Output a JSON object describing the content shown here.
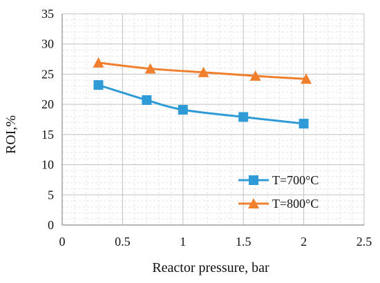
{
  "chart_data": {
    "type": "line",
    "title": "",
    "xlabel": "Reactor pressure, bar",
    "ylabel": "ROI,%",
    "xlim": [
      0,
      2.5
    ],
    "ylim": [
      0,
      35
    ],
    "xticks": [
      "0",
      "0.5",
      "1",
      "1.5",
      "2",
      "2.5"
    ],
    "yticks": [
      "0",
      "5",
      "10",
      "15",
      "20",
      "25",
      "30",
      "35"
    ],
    "grid": true,
    "legend_position": "bottom-right",
    "series": [
      {
        "name": "T=700°C",
        "color": "#2E9BD6",
        "marker": "square",
        "x": [
          0.3,
          0.7,
          1.0,
          1.5,
          2.0
        ],
        "y": [
          23.2,
          20.7,
          19.1,
          17.9,
          16.8
        ]
      },
      {
        "name": "T=800°C",
        "color": "#F07F2E",
        "marker": "triangle",
        "x": [
          0.3,
          0.73,
          1.17,
          1.6,
          2.02
        ],
        "y": [
          26.9,
          25.9,
          25.3,
          24.7,
          24.2
        ]
      }
    ]
  }
}
